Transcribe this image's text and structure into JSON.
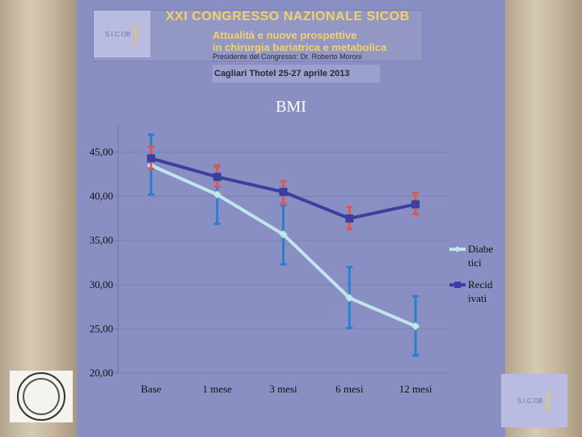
{
  "header": {
    "congress_title": "XXI CONGRESSO NAZIONALE SICOB",
    "subtitle_line1": "Attualità e nuove prospettive",
    "subtitle_line2": "in chirurgia bariatrica e metabolica",
    "president": "Presidente del Congresso: Dr. Roberto Moroni",
    "venue": "Cagliari Thotel 25-27 aprile 2013",
    "logo_text": "S.I.C.OB"
  },
  "colors": {
    "background": "#8a8fc3",
    "series_diabetici": "#bfe6ea",
    "series_recidivati": "#3b3f9e",
    "error_diabetici": "#2a7fd0",
    "error_recidivati": "#e0574f"
  },
  "icons": [
    "lion-statue-left",
    "lion-statue-right",
    "university-seal",
    "sicob-logo"
  ],
  "chart_data": {
    "type": "line",
    "title": "BMI",
    "categories": [
      "Base",
      "1 mese",
      "3 mesi",
      "6 mesi",
      "12 mesi"
    ],
    "ylim": [
      20,
      45
    ],
    "y_ticks": [
      "45,00",
      "40,00",
      "35,00",
      "30,00",
      "25,00",
      "20,00"
    ],
    "y_tick_values": [
      45,
      40,
      35,
      30,
      25,
      20
    ],
    "grid": true,
    "legend_position": "right",
    "series": [
      {
        "name_lines": [
          "Diabe",
          "tici"
        ],
        "values": [
          43.5,
          40.2,
          35.7,
          28.5,
          25.3
        ],
        "error_low": [
          40.2,
          36.9,
          32.3,
          25.1,
          22.0
        ],
        "error_high": [
          47.0,
          43.4,
          39.0,
          32.0,
          28.7
        ]
      },
      {
        "name_lines": [
          "Recid",
          "ivati"
        ],
        "values": [
          44.3,
          42.2,
          40.5,
          37.5,
          39.1
        ],
        "error_low": [
          43.1,
          41.1,
          39.2,
          36.3,
          38.0
        ],
        "error_high": [
          45.6,
          43.5,
          41.7,
          38.8,
          40.4
        ]
      }
    ]
  }
}
